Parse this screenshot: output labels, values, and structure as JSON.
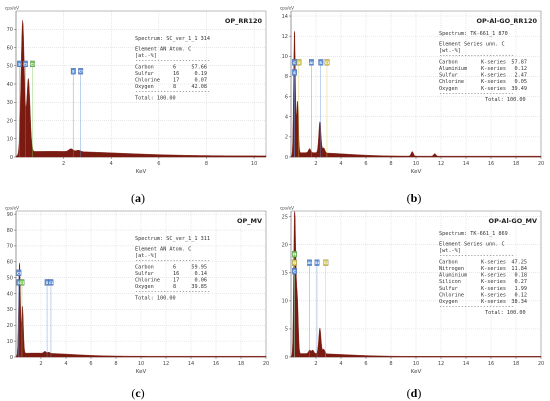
{
  "colors": {
    "spectrum": "#7a1a10",
    "axis": "#555555",
    "grid": "#bdbdbd",
    "peak_label_fill": "#5a8fd8",
    "peak_label_green": "#78c850",
    "peak_label_yellow": "#d8c84a"
  },
  "panels": [
    {
      "id": "a",
      "caption_letter": "a",
      "title": "OP_RR120",
      "yunit": "cps/eV",
      "xlabel": "KeV",
      "ylim": [
        0,
        80
      ],
      "yticks": [
        "0",
        "10",
        "20",
        "30",
        "40",
        "50",
        "60",
        "70"
      ],
      "xlim": [
        0,
        10.5
      ],
      "xticks": [
        "2",
        "4",
        "6",
        "8",
        "10"
      ],
      "table": {
        "spectrum": "Spectrum: SC_ver_1_1 314",
        "header1": "Element  AN Atom. C",
        "header2": "              [at.-%]",
        "rows": [
          [
            "Carbon",
            "6",
            "57.66"
          ],
          [
            "Sulfur",
            "16",
            "0.19"
          ],
          [
            "Chlorine",
            "17",
            "0.07"
          ],
          [
            "Oxygen",
            "8",
            "42.08"
          ]
        ],
        "total": "Total: 100.00"
      },
      "peak_labels": [
        {
          "text": "S",
          "x": 0.05,
          "y": 51,
          "color": "blue"
        },
        {
          "text": "Cl",
          "x": 0.3,
          "y": 51,
          "color": "blue"
        },
        {
          "text": "Cl",
          "x": 0.6,
          "y": 51,
          "color": "green"
        },
        {
          "text": "S",
          "x": 2.31,
          "y": 47,
          "color": "blue"
        },
        {
          "text": "Cl",
          "x": 2.62,
          "y": 47,
          "color": "blue"
        }
      ],
      "chart_data": {
        "type": "line",
        "xlabel": "KeV",
        "ylabel": "cps/eV",
        "peaks": [
          {
            "x": 0.28,
            "y": 72
          },
          {
            "x": 0.52,
            "y": 40
          },
          {
            "x": 2.31,
            "y": 1.5
          },
          {
            "x": 2.62,
            "y": 0.8
          }
        ],
        "background": 2.5
      }
    },
    {
      "id": "b",
      "caption_letter": "b",
      "title": "OP-Al-GO_RR120",
      "yunit": "cps/eV",
      "xlabel": "KeV",
      "ylim": [
        0,
        14.5
      ],
      "yticks": [
        "0",
        "2",
        "4",
        "6",
        "8",
        "10",
        "12",
        "14"
      ],
      "xlim": [
        0,
        20
      ],
      "xticks": [
        "2",
        "4",
        "6",
        "8",
        "10",
        "12",
        "14",
        "16",
        "18",
        "20"
      ],
      "table": {
        "spectrum": "Spectrum: TK-661_1 870",
        "header1": "Element    Series    unn. C",
        "header2": "                    [wt.-%]",
        "rows": [
          [
            "Carbon",
            "K-series",
            "57.87"
          ],
          [
            "Aluminium",
            "K-series",
            "0.12"
          ],
          [
            "Sulfur",
            "K-series",
            "2.47"
          ],
          [
            "Chlorine",
            "K-series",
            "0.05"
          ],
          [
            "Oxygen",
            "K-series",
            "39.49"
          ]
        ],
        "total": "Total: 100.00"
      },
      "peak_labels": [
        {
          "text": "C",
          "x": 0.1,
          "y": 9.4,
          "color": "blue"
        },
        {
          "text": "O",
          "x": 0.45,
          "y": 9.4,
          "color": "yellow"
        },
        {
          "text": "Al",
          "x": 1.45,
          "y": 9.4,
          "color": "blue"
        },
        {
          "text": "S",
          "x": 2.2,
          "y": 9.4,
          "color": "blue"
        },
        {
          "text": "Cl",
          "x": 2.7,
          "y": 9.4,
          "color": "yellow"
        },
        {
          "text": "S",
          "x": 0.1,
          "y": 8.4,
          "color": "blue"
        }
      ],
      "chart_data": {
        "type": "line",
        "xlabel": "KeV",
        "ylabel": "cps/eV",
        "peaks": [
          {
            "x": 0.28,
            "y": 12.3
          },
          {
            "x": 0.52,
            "y": 5.2
          },
          {
            "x": 1.49,
            "y": 0.4
          },
          {
            "x": 2.31,
            "y": 3.1
          },
          {
            "x": 2.62,
            "y": 0.5
          },
          {
            "x": 9.7,
            "y": 0.45
          },
          {
            "x": 11.5,
            "y": 0.25
          }
        ],
        "background": 0.35
      }
    },
    {
      "id": "c",
      "caption_letter": "c",
      "title": "OP_MV",
      "yunit": "cps/eV",
      "xlabel": "KeV",
      "ylim": [
        0,
        92
      ],
      "yticks": [
        "0",
        "10",
        "20",
        "30",
        "40",
        "50",
        "60",
        "70",
        "80",
        "90"
      ],
      "xlim": [
        0,
        20
      ],
      "xticks": [
        "2",
        "4",
        "6",
        "8",
        "10",
        "12",
        "14",
        "16",
        "18",
        "20"
      ],
      "table": {
        "spectrum": "Spectrum: SC_ver_1_1 311",
        "header1": "Element  AN Atom. C",
        "header2": "              [at.-%]",
        "rows": [
          [
            "Carbon",
            "6",
            "59.95"
          ],
          [
            "Sulfur",
            "16",
            "0.14"
          ],
          [
            "Chlorine",
            "17",
            "0.06"
          ],
          [
            "Oxygen",
            "8",
            "39.85"
          ]
        ],
        "total": "Total: 100.00"
      },
      "peak_labels": [
        {
          "text": "Cl",
          "x": 0.05,
          "y": 53,
          "color": "blue"
        },
        {
          "text": "S",
          "x": 0.05,
          "y": 47,
          "color": "blue"
        },
        {
          "text": "Cl",
          "x": 0.3,
          "y": 47,
          "color": "green"
        },
        {
          "text": "S",
          "x": 2.31,
          "y": 47,
          "color": "blue"
        },
        {
          "text": "Cl",
          "x": 2.62,
          "y": 47,
          "color": "blue"
        }
      ],
      "chart_data": {
        "type": "line",
        "xlabel": "KeV",
        "ylabel": "cps/eV",
        "peaks": [
          {
            "x": 0.28,
            "y": 58
          },
          {
            "x": 0.52,
            "y": 30
          },
          {
            "x": 2.31,
            "y": 1.2
          },
          {
            "x": 2.62,
            "y": 0.7
          }
        ],
        "background": 2
      }
    },
    {
      "id": "d",
      "caption_letter": "d",
      "title": "OP-Al-GO_MV",
      "yunit": "cps/eV",
      "xlabel": "KeV",
      "ylim": [
        0,
        26
      ],
      "yticks": [
        "0",
        "5",
        "10",
        "15",
        "20",
        "25"
      ],
      "xlim": [
        0,
        20
      ],
      "xticks": [
        "2",
        "4",
        "6",
        "8",
        "10",
        "12",
        "14",
        "16",
        "18",
        "20"
      ],
      "table": {
        "spectrum": "Spectrum: TK-661_1 869",
        "header1": "Element    Series    unn. C",
        "header2": "                    [wt.-%]",
        "rows": [
          [
            "Carbon",
            "K-series",
            "47.25"
          ],
          [
            "Nitrogen",
            "K-series",
            "11.84"
          ],
          [
            "Aluminium",
            "K-series",
            "0.18"
          ],
          [
            "Silicon",
            "K-series",
            "0.27"
          ],
          [
            "Sulfur",
            "K-series",
            "1.99"
          ],
          [
            "Chlorine",
            "K-series",
            "0.12"
          ],
          [
            "Oxygen",
            "K-series",
            "38.34"
          ]
        ],
        "total": "Total: 100.00"
      },
      "peak_labels": [
        {
          "text": "N",
          "x": 0.1,
          "y": 18.3,
          "color": "green"
        },
        {
          "text": "O",
          "x": 0.1,
          "y": 16.8,
          "color": "yellow"
        },
        {
          "text": "C",
          "x": 0.1,
          "y": 15.3,
          "color": "blue"
        },
        {
          "text": "Al",
          "x": 1.3,
          "y": 16.8,
          "color": "blue"
        },
        {
          "text": "Si",
          "x": 1.9,
          "y": 16.8,
          "color": "blue"
        },
        {
          "text": "Cl",
          "x": 2.6,
          "y": 16.8,
          "color": "yellow"
        }
      ],
      "chart_data": {
        "type": "line",
        "xlabel": "KeV",
        "ylabel": "cps/eV",
        "peaks": [
          {
            "x": 0.28,
            "y": 23.5
          },
          {
            "x": 0.39,
            "y": 9
          },
          {
            "x": 0.52,
            "y": 8.5
          },
          {
            "x": 1.49,
            "y": 0.6
          },
          {
            "x": 1.74,
            "y": 0.6
          },
          {
            "x": 2.31,
            "y": 4.6
          },
          {
            "x": 2.62,
            "y": 0.8
          }
        ],
        "background": 0.5
      }
    }
  ]
}
